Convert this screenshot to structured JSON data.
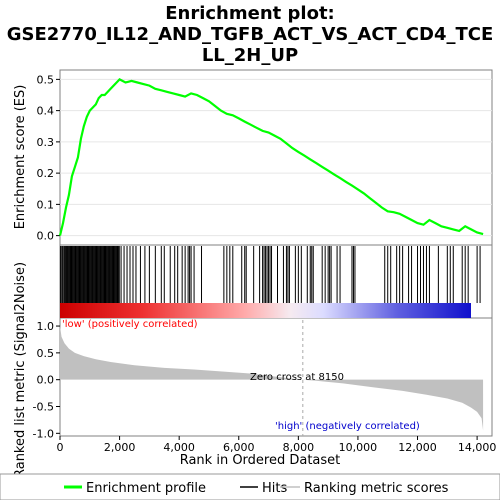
{
  "chart_data": {
    "type": "line",
    "title_lines": [
      "Enrichment plot:",
      "GSE2770_IL12_AND_TGFB_ACT_VS_ACT_CD4_TCE",
      "LL_2H_UP"
    ],
    "colors": {
      "es": "#00ff00",
      "hits": "#000000",
      "metric": "#c0c0c0",
      "pos_label": "#ff0000",
      "neg_label": "#0000cc",
      "zero_line": "#aaaaaa"
    },
    "xlabel": "Rank in Ordered Dataset",
    "ylabel_es": "Enrichment score (ES)",
    "ylabel_metric": "Ranked list metric (Signal2Noise)",
    "xlim": [
      0,
      14500
    ],
    "x_ticks": [
      0,
      2000,
      4000,
      6000,
      8000,
      10000,
      12000,
      14000
    ],
    "x_tick_labels": [
      "0",
      "2,000",
      "4,000",
      "6,000",
      "8,000",
      "10,000",
      "12,000",
      "14,000"
    ],
    "es_ylim": [
      -0.03,
      0.53
    ],
    "es_ticks": [
      0.0,
      0.1,
      0.2,
      0.3,
      0.4,
      0.5
    ],
    "es_tick_labels": [
      "0.0",
      "0.1",
      "0.2",
      "0.3",
      "0.4",
      "0.5"
    ],
    "es_series": {
      "name": "Enrichment profile",
      "x": [
        0,
        100,
        200,
        300,
        400,
        500,
        600,
        700,
        800,
        900,
        1000,
        1100,
        1200,
        1300,
        1400,
        1500,
        1600,
        1700,
        1800,
        1900,
        2000,
        2200,
        2400,
        2600,
        2800,
        3000,
        3200,
        3400,
        3600,
        3800,
        4000,
        4200,
        4400,
        4600,
        4800,
        5000,
        5200,
        5400,
        5600,
        5800,
        6000,
        6200,
        6400,
        6600,
        6800,
        7000,
        7200,
        7400,
        7600,
        7800,
        8000,
        8200,
        8400,
        8600,
        8800,
        9000,
        9200,
        9400,
        9600,
        9800,
        10000,
        10200,
        10400,
        10600,
        10800,
        11000,
        11200,
        11400,
        11600,
        11800,
        12000,
        12200,
        12400,
        12600,
        12800,
        13000,
        13200,
        13400,
        13600,
        13800,
        14000,
        14200
      ],
      "y": [
        0.0,
        0.04,
        0.09,
        0.13,
        0.19,
        0.22,
        0.25,
        0.31,
        0.35,
        0.38,
        0.4,
        0.41,
        0.42,
        0.44,
        0.45,
        0.45,
        0.46,
        0.47,
        0.48,
        0.49,
        0.5,
        0.49,
        0.495,
        0.49,
        0.485,
        0.48,
        0.47,
        0.465,
        0.46,
        0.455,
        0.45,
        0.445,
        0.455,
        0.45,
        0.44,
        0.43,
        0.415,
        0.4,
        0.39,
        0.385,
        0.375,
        0.365,
        0.355,
        0.345,
        0.335,
        0.33,
        0.32,
        0.31,
        0.295,
        0.28,
        0.268,
        0.256,
        0.244,
        0.232,
        0.22,
        0.208,
        0.196,
        0.184,
        0.172,
        0.16,
        0.148,
        0.135,
        0.12,
        0.105,
        0.09,
        0.078,
        0.075,
        0.07,
        0.06,
        0.05,
        0.04,
        0.035,
        0.05,
        0.04,
        0.03,
        0.025,
        0.02,
        0.015,
        0.03,
        0.02,
        0.01,
        0.005
      ]
    },
    "hits": [
      20,
      60,
      90,
      130,
      160,
      190,
      220,
      250,
      280,
      310,
      340,
      370,
      400,
      430,
      460,
      490,
      520,
      550,
      580,
      610,
      640,
      670,
      700,
      730,
      760,
      790,
      820,
      850,
      880,
      910,
      940,
      970,
      1000,
      1030,
      1060,
      1090,
      1120,
      1150,
      1180,
      1210,
      1240,
      1270,
      1300,
      1330,
      1360,
      1390,
      1420,
      1450,
      1480,
      1510,
      1540,
      1570,
      1600,
      1630,
      1660,
      1690,
      1720,
      1750,
      1780,
      1810,
      1840,
      1870,
      1900,
      1930,
      1960,
      1990,
      2050,
      2150,
      2250,
      2350,
      2450,
      2550,
      2700,
      2850,
      3000,
      3200,
      3400,
      3500,
      3700,
      3850,
      3950,
      4100,
      4200,
      4300,
      4350,
      4400,
      4500,
      4750,
      5500,
      5600,
      5700,
      5800,
      6100,
      6200,
      6250,
      6500,
      6700,
      6800,
      6850,
      6900,
      6950,
      7000,
      7050,
      7100,
      7300,
      7500,
      7600,
      7650,
      7700,
      7900,
      8000,
      8100,
      8300,
      8400,
      8450,
      8500,
      8800,
      8900,
      9000,
      9050,
      9100,
      9300,
      9400,
      9800,
      9850,
      9900,
      10900,
      11000,
      11100,
      11300,
      11400,
      11500,
      11700,
      11800,
      12000,
      12100,
      12200,
      12300,
      12400,
      12700,
      13000,
      13100,
      13200,
      13500,
      13600,
      13700,
      14000,
      14100
    ],
    "metric_ylim": [
      -1.05,
      1.15
    ],
    "metric_ticks": [
      -1.0,
      -0.5,
      0.0,
      0.5,
      1.0
    ],
    "metric_tick_labels": [
      "-1.0",
      "-0.5",
      "0.0",
      "0.5",
      "1.0"
    ],
    "metric_series": {
      "x": [
        0,
        50,
        150,
        300,
        500,
        800,
        1200,
        1700,
        2500,
        3500,
        4500,
        5500,
        6500,
        7200,
        7800,
        8150,
        8600,
        9500,
        10500,
        11500,
        12300,
        13000,
        13500,
        13800,
        14000,
        14150,
        14200
      ],
      "y": [
        1.0,
        0.8,
        0.68,
        0.58,
        0.5,
        0.44,
        0.38,
        0.33,
        0.27,
        0.22,
        0.19,
        0.15,
        0.11,
        0.06,
        0.02,
        0.0,
        -0.02,
        -0.07,
        -0.14,
        -0.21,
        -0.28,
        -0.35,
        -0.43,
        -0.52,
        -0.6,
        -0.72,
        -0.95
      ]
    },
    "annotations": {
      "pos_label": "'low' (positively correlated)",
      "neg_label": "'high' (negatively correlated)",
      "zero_cross": "Zero cross at 8150",
      "zero_cross_x": 8150
    },
    "legend": [
      {
        "label": "Enrichment profile",
        "kind": "es"
      },
      {
        "label": "Hits",
        "kind": "hits"
      },
      {
        "label": "Ranking metric scores",
        "kind": "metric"
      }
    ],
    "legend_position": "bottom"
  }
}
